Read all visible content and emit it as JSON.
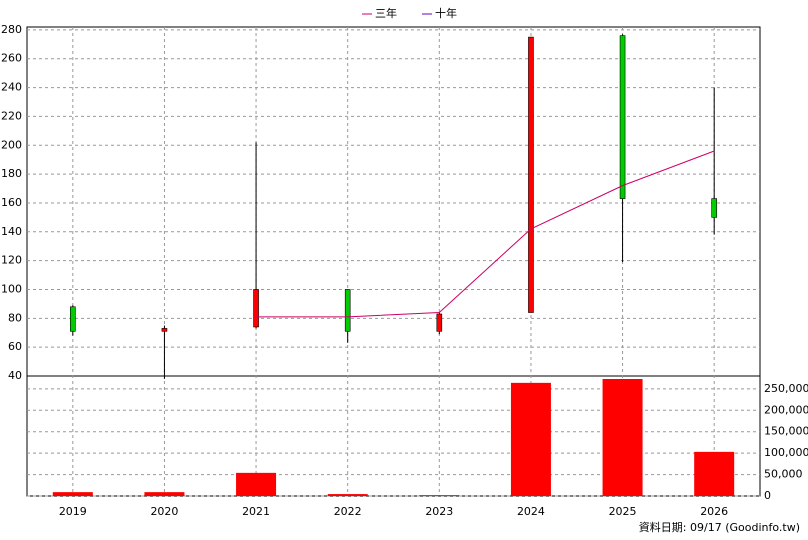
{
  "chart_data": {
    "type": "candlestick",
    "categories": [
      "2019",
      "2020",
      "2021",
      "2022",
      "2023",
      "2024",
      "2025",
      "2026"
    ],
    "open": [
      71,
      73,
      100,
      71,
      83,
      275,
      163,
      150
    ],
    "high": [
      89,
      75,
      202,
      100,
      84,
      275,
      277,
      240
    ],
    "low": [
      68,
      38,
      73,
      63,
      69,
      84,
      119,
      138
    ],
    "close": [
      88,
      71,
      74,
      100,
      71,
      84,
      276,
      163
    ],
    "up_color": "#00cc00",
    "down_color": "#ff0000",
    "lines": [
      {
        "name": "三年",
        "color": "#cc0066",
        "values": [
          null,
          null,
          81,
          81,
          84,
          142,
          172,
          196
        ]
      },
      {
        "name": "十年",
        "color": "#6600cc",
        "values": [
          null,
          null,
          null,
          null,
          null,
          null,
          null,
          null
        ]
      }
    ],
    "volume": {
      "color": "#ff0000",
      "axis": "y2",
      "values": [
        9000,
        9000,
        54000,
        4500,
        2000,
        264000,
        273000,
        103000
      ]
    },
    "ylim": [
      40,
      282
    ],
    "yticks": [
      40,
      60,
      80,
      100,
      120,
      140,
      160,
      180,
      200,
      220,
      240,
      260,
      280
    ],
    "y2lim": [
      0,
      280000
    ],
    "y2ticks": [
      {
        "value": 0,
        "label": "0"
      },
      {
        "value": 50000,
        "label": "50,000"
      },
      {
        "value": 100000,
        "label": "100,000"
      },
      {
        "value": 150000,
        "label": "150,000"
      },
      {
        "value": 200000,
        "label": "200,000"
      },
      {
        "value": 250000,
        "label": "250,000"
      }
    ],
    "grid": true,
    "footer": "資料日期: 09/17  (Goodinfo.tw)"
  }
}
